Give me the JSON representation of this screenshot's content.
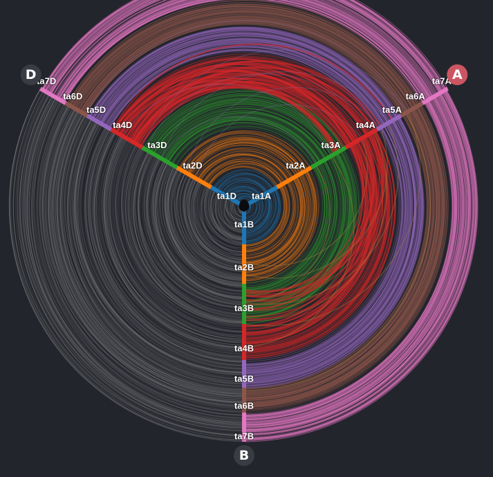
{
  "axes": [
    {
      "id": "A",
      "badge_color": "#cc5563"
    },
    {
      "id": "B",
      "badge_color": "#3a3c43"
    },
    {
      "id": "D",
      "badge_color": "#3a3c43"
    }
  ],
  "levels": [
    {
      "level": 1,
      "color": "#1f77b4",
      "labels": {
        "A": "ta1A",
        "B": "ta1B",
        "D": "ta1D"
      }
    },
    {
      "level": 2,
      "color": "#ff7f0e",
      "labels": {
        "A": "ta2A",
        "B": "ta2B",
        "D": "ta2D"
      }
    },
    {
      "level": 3,
      "color": "#2ca02c",
      "labels": {
        "A": "ta3A",
        "B": "ta3B",
        "D": "ta3D"
      }
    },
    {
      "level": 4,
      "color": "#d62728",
      "labels": {
        "A": "ta4A",
        "B": "ta4B",
        "D": "ta4D"
      }
    },
    {
      "level": 5,
      "color": "#9467bd",
      "labels": {
        "A": "ta5A",
        "B": "ta5B",
        "D": "ta5D"
      }
    },
    {
      "level": 6,
      "color": "#8c564b",
      "labels": {
        "A": "ta6A",
        "B": "ta6B",
        "D": "ta6D"
      }
    },
    {
      "level": 7,
      "color": "#e377c2",
      "labels": {
        "A": "ta7A",
        "B": "ta7B",
        "D": "ta7D"
      }
    }
  ],
  "link_colors": {
    "A_to_B": "by-level",
    "B_to_D": "#8a8a8a",
    "D_to_A": "by-level"
  }
}
